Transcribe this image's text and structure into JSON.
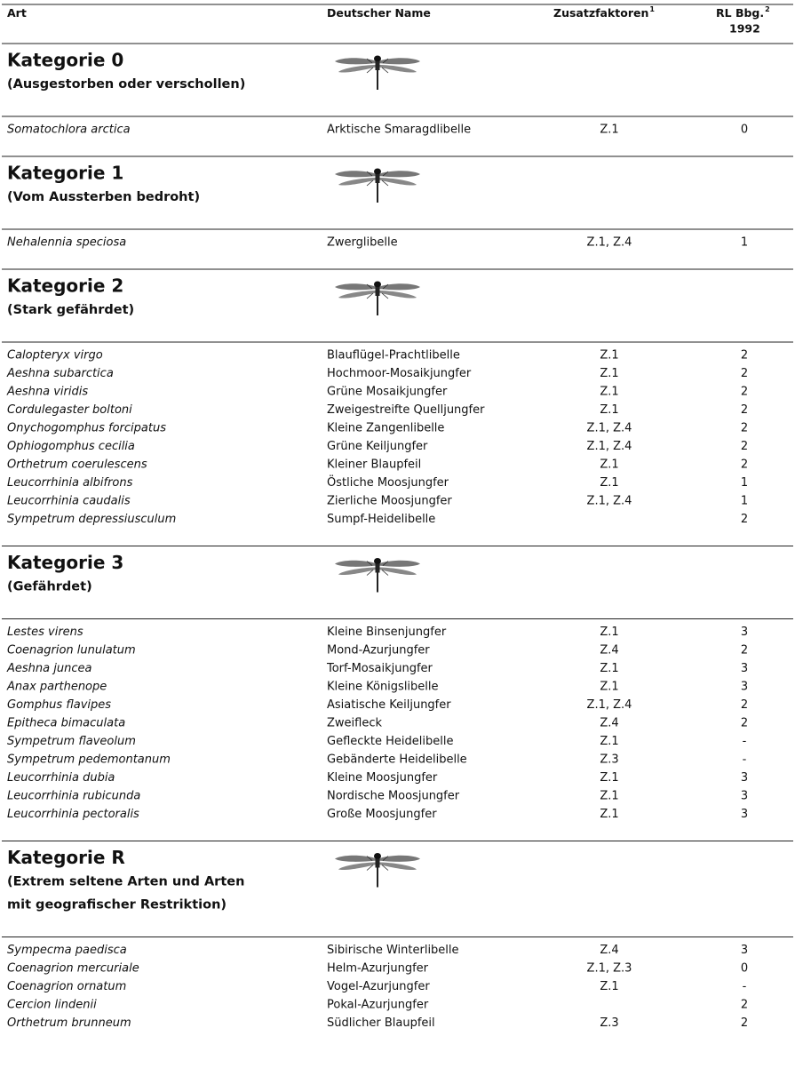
{
  "table": {
    "header": [
      {
        "text": "Art"
      },
      {
        "text": "Deutscher Name"
      },
      {
        "text": "Zusatzfaktoren",
        "sup": "1"
      },
      {
        "text": "RL Bbg.",
        "sup": "2",
        "line2": "1992"
      }
    ],
    "sections": [
      {
        "title": "Kategorie 0",
        "subtitle": [
          "(Ausgestorben oder verschollen)"
        ],
        "rows": [
          [
            "Somatochlora arctica",
            "Arktische Smaragdlibelle",
            "Z.1",
            "0"
          ]
        ]
      },
      {
        "title": "Kategorie 1",
        "subtitle": [
          "(Vom Aussterben bedroht)"
        ],
        "rows": [
          [
            "Nehalennia speciosa",
            "Zwerglibelle",
            "Z.1, Z.4",
            "1"
          ]
        ]
      },
      {
        "title": "Kategorie 2",
        "subtitle": [
          "(Stark gefährdet)"
        ],
        "rows": [
          [
            "Calopteryx virgo",
            "Blauflügel-Prachtlibelle",
            "Z.1",
            "2"
          ],
          [
            "Aeshna subarctica",
            "Hochmoor-Mosaikjungfer",
            "Z.1",
            "2"
          ],
          [
            "Aeshna viridis",
            "Grüne Mosaikjungfer",
            "Z.1",
            "2"
          ],
          [
            "Cordulegaster boltoni",
            "Zweigestreifte Quelljungfer",
            "Z.1",
            "2"
          ],
          [
            "Onychogomphus forcipatus",
            "Kleine Zangenlibelle",
            "Z.1, Z.4",
            "2"
          ],
          [
            "Ophiogomphus cecilia",
            "Grüne Keiljungfer",
            "Z.1, Z.4",
            "2"
          ],
          [
            "Orthetrum coerulescens",
            "Kleiner Blaupfeil",
            "Z.1",
            "2"
          ],
          [
            "Leucorrhinia albifrons",
            "Östliche Moosjungfer",
            "Z.1",
            "1"
          ],
          [
            "Leucorrhinia caudalis",
            "Zierliche Moosjungfer",
            "Z.1, Z.4",
            "1"
          ],
          [
            "Sympetrum depressiusculum",
            "Sumpf-Heidelibelle",
            null,
            "2"
          ]
        ]
      },
      {
        "title": "Kategorie 3",
        "subtitle": [
          "(Gefährdet)"
        ],
        "rows": [
          [
            "Lestes virens",
            "Kleine Binsenjungfer",
            "Z.1",
            "3"
          ],
          [
            "Coenagrion lunulatum",
            "Mond-Azurjungfer",
            "Z.4",
            "2"
          ],
          [
            "Aeshna juncea",
            "Torf-Mosaikjungfer",
            "Z.1",
            "3"
          ],
          [
            "Anax parthenope",
            "Kleine Königslibelle",
            "Z.1",
            "3"
          ],
          [
            "Gomphus flavipes",
            "Asiatische Keiljungfer",
            "Z.1, Z.4",
            "2"
          ],
          [
            "Epitheca bimaculata",
            "Zweifleck",
            "Z.4",
            "2"
          ],
          [
            "Sympetrum flaveolum",
            "Gefleckte Heidelibelle",
            "Z.1",
            "-"
          ],
          [
            "Sympetrum pedemontanum",
            "Gebänderte Heidelibelle",
            "Z.3",
            "-"
          ],
          [
            "Leucorrhinia dubia",
            "Kleine Moosjungfer",
            "Z.1",
            "3"
          ],
          [
            "Leucorrhinia rubicunda",
            "Nordische Moosjungfer",
            "Z.1",
            "3"
          ],
          [
            "Leucorrhinia pectoralis",
            "Große Moosjungfer",
            "Z.1",
            "3"
          ]
        ]
      },
      {
        "title": "Kategorie R",
        "subtitle": [
          "(Extrem seltene Arten und Arten",
          "mit geografischer Restriktion)"
        ],
        "rows": [
          [
            "Sympecma paedisca",
            "Sibirische Winterlibelle",
            "Z.4",
            "3"
          ],
          [
            "Coenagrion mercuriale",
            "Helm-Azurjungfer",
            "Z.1, Z.3",
            "0"
          ],
          [
            "Coenagrion ornatum",
            "Vogel-Azurjungfer",
            "Z.1",
            "-"
          ],
          [
            "Cercion lindenii",
            "Pokal-Azurjungfer",
            null,
            "2"
          ],
          [
            "Orthetrum brunneum",
            "Südlicher Blaupfeil",
            "Z.3",
            "2"
          ]
        ]
      }
    ]
  }
}
